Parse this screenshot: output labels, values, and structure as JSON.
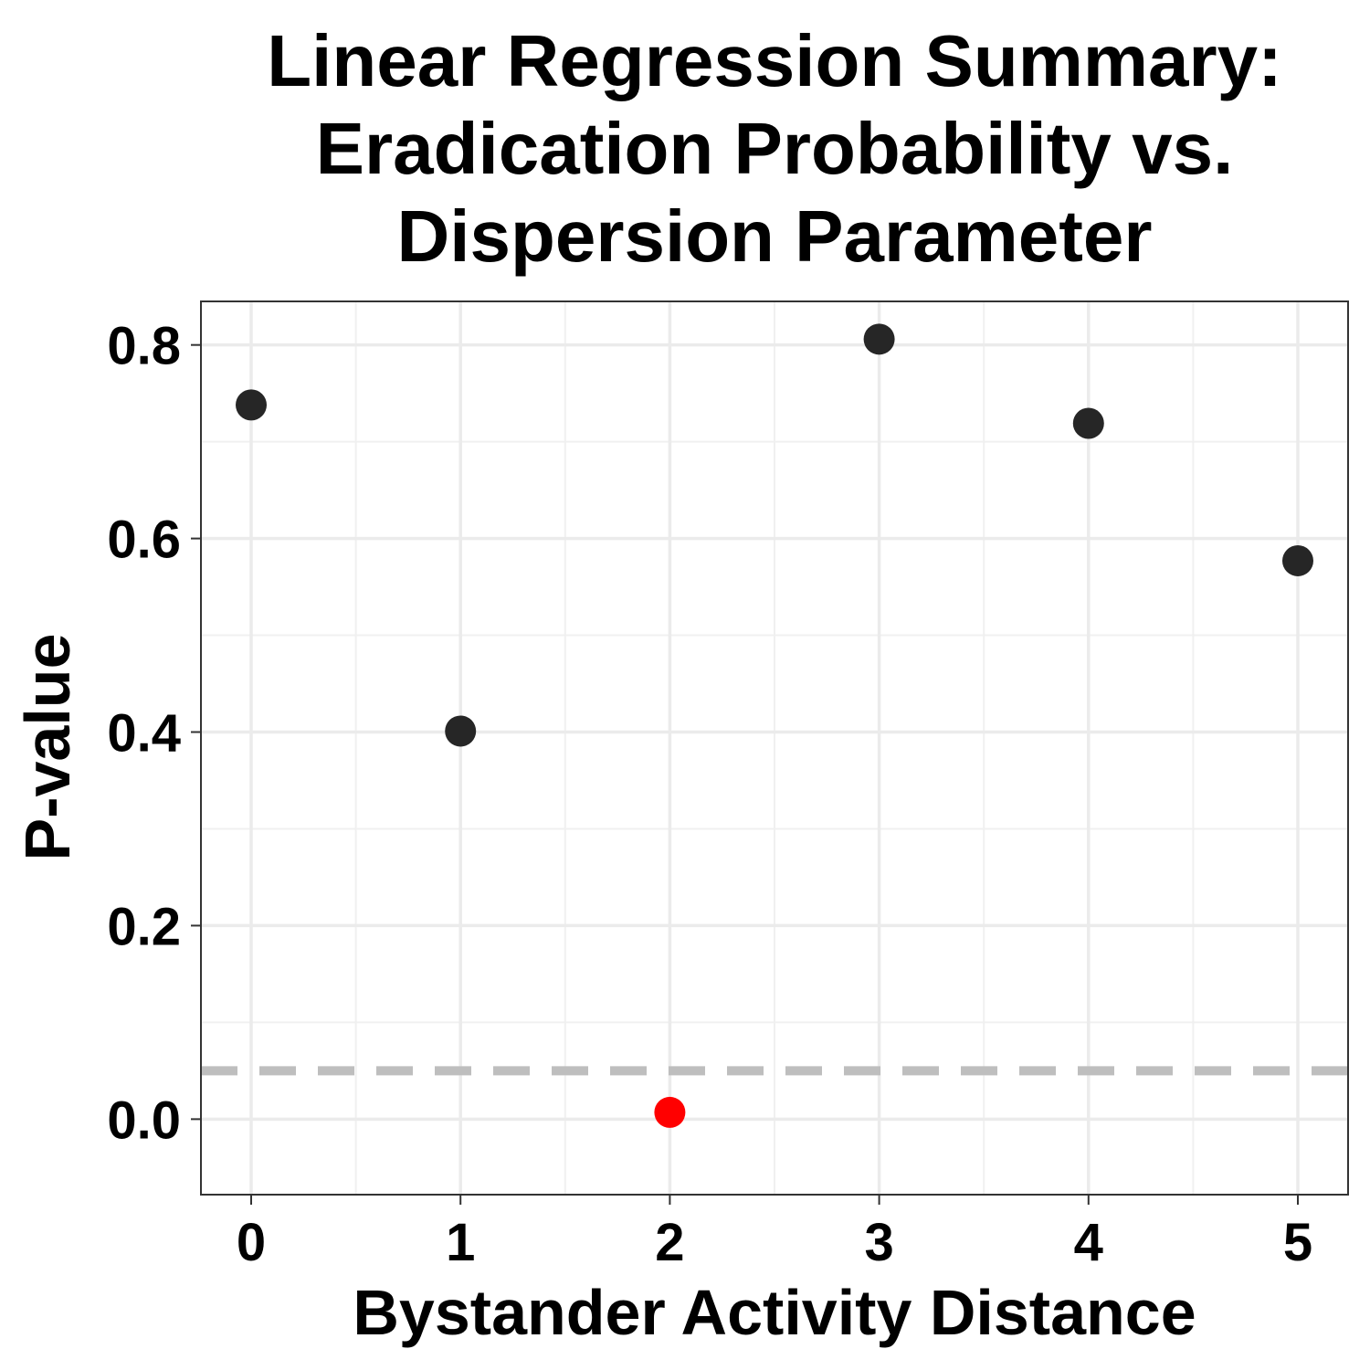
{
  "chart_data": {
    "type": "scatter",
    "title_lines": [
      "Linear Regression Summary:",
      "Eradication Probability vs.",
      "Dispersion Parameter"
    ],
    "xlabel": "Bystander Activity Distance",
    "ylabel": "P-value",
    "xlim": [
      -0.24,
      5.24
    ],
    "ylim": [
      -0.078,
      0.845
    ],
    "x_ticks": [
      0,
      1,
      2,
      3,
      4,
      5
    ],
    "y_ticks": [
      0.0,
      0.2,
      0.4,
      0.6,
      0.8
    ],
    "x_tick_labels": [
      "0",
      "1",
      "2",
      "3",
      "4",
      "5"
    ],
    "y_tick_labels": [
      "0.0",
      "0.2",
      "0.4",
      "0.6",
      "0.8"
    ],
    "grid": true,
    "reference_line": {
      "y": 0.05,
      "style": "dashed",
      "color": "#bebebe"
    },
    "points": [
      {
        "x": 0,
        "y": 0.738,
        "color": "#262626"
      },
      {
        "x": 1,
        "y": 0.401,
        "color": "#262626"
      },
      {
        "x": 2,
        "y": 0.007,
        "color": "#ff0000"
      },
      {
        "x": 3,
        "y": 0.806,
        "color": "#262626"
      },
      {
        "x": 4,
        "y": 0.719,
        "color": "#262626"
      },
      {
        "x": 5,
        "y": 0.577,
        "color": "#262626"
      }
    ]
  }
}
